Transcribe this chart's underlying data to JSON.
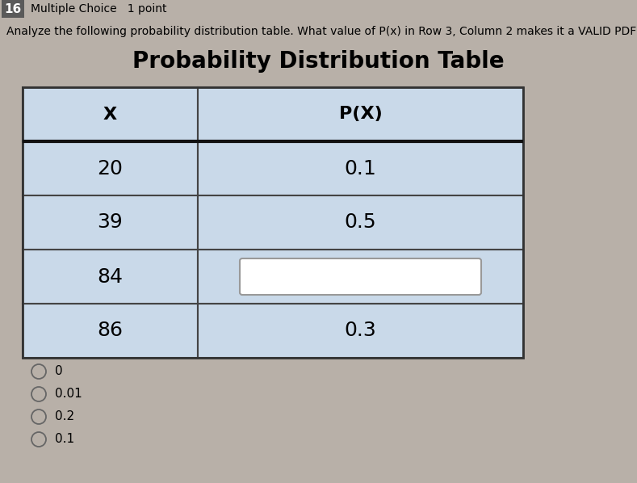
{
  "question_number": "16",
  "question_type": "Multiple Choice   1 point",
  "question_text": "Analyze the following probability distribution table. What value of P(x) in Row 3, Column 2 makes it a VALID PDF?",
  "title": "Probability Distribution Table",
  "col_headers": [
    "X",
    "P(X)"
  ],
  "rows": [
    [
      "20",
      "0.1"
    ],
    [
      "39",
      "0.5"
    ],
    [
      "84",
      ""
    ],
    [
      "86",
      "0.3"
    ]
  ],
  "blank_row": 2,
  "choices": [
    "0",
    "0.01",
    "0.2",
    "0.1"
  ],
  "table_bg": "#c9d9e9",
  "blank_box_color": "#ffffff",
  "title_fontsize": 20,
  "header_fontsize": 16,
  "cell_fontsize": 18,
  "choice_fontsize": 11,
  "qnum_fontsize": 11,
  "qtype_fontsize": 10,
  "qtext_fontsize": 10,
  "bg_color": "#b8b0a8",
  "num_bg": "#5a5a5a",
  "table_border_lw": 2.0,
  "header_sep_lw": 3.0
}
